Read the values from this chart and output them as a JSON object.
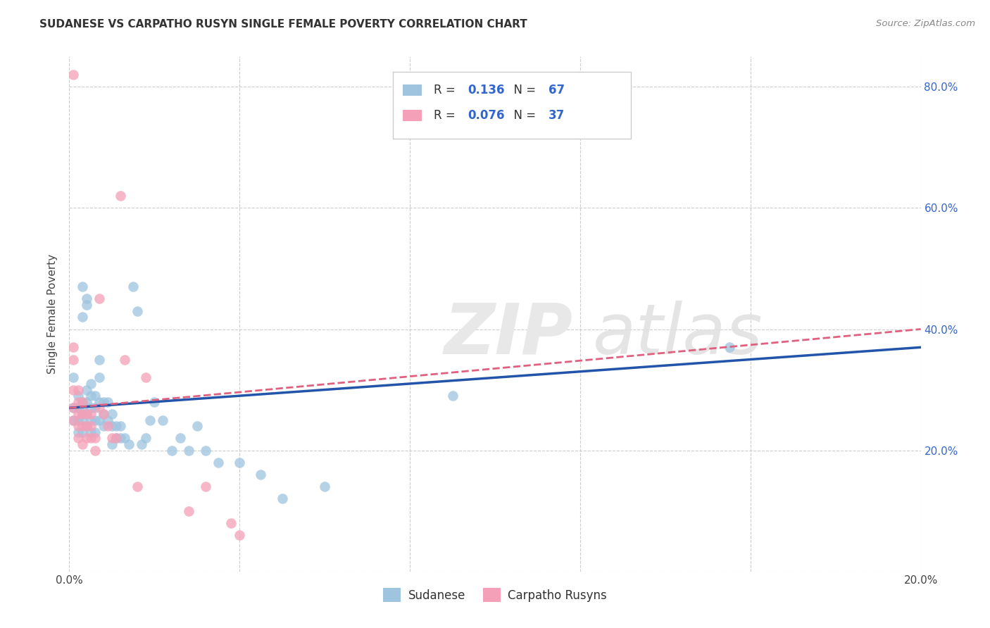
{
  "title": "SUDANESE VS CARPATHO RUSYN SINGLE FEMALE POVERTY CORRELATION CHART",
  "source": "Source: ZipAtlas.com",
  "ylabel": "Single Female Poverty",
  "xlim": [
    0.0,
    0.2
  ],
  "ylim": [
    0.0,
    0.85
  ],
  "xtick_vals": [
    0.0,
    0.04,
    0.08,
    0.12,
    0.16,
    0.2
  ],
  "ytick_vals": [
    0.0,
    0.2,
    0.4,
    0.6,
    0.8
  ],
  "sudanese_color": "#9ec4e0",
  "carpatho_color": "#f4a0b8",
  "sudanese_R": 0.136,
  "sudanese_N": 67,
  "carpatho_R": 0.076,
  "carpatho_N": 37,
  "sudanese_line_color": "#2255aa",
  "carpatho_line_color": "#e06080",
  "background_color": "#ffffff",
  "grid_color": "#cccccc",
  "legend_color": "#3366cc",
  "sudanese_x": [
    0.001,
    0.001,
    0.001,
    0.002,
    0.002,
    0.002,
    0.002,
    0.002,
    0.003,
    0.003,
    0.003,
    0.003,
    0.003,
    0.003,
    0.003,
    0.004,
    0.004,
    0.004,
    0.004,
    0.004,
    0.004,
    0.005,
    0.005,
    0.005,
    0.005,
    0.005,
    0.006,
    0.006,
    0.006,
    0.006,
    0.007,
    0.007,
    0.007,
    0.007,
    0.008,
    0.008,
    0.008,
    0.009,
    0.009,
    0.01,
    0.01,
    0.01,
    0.011,
    0.011,
    0.012,
    0.012,
    0.013,
    0.014,
    0.015,
    0.016,
    0.017,
    0.018,
    0.019,
    0.02,
    0.022,
    0.024,
    0.026,
    0.028,
    0.03,
    0.032,
    0.035,
    0.04,
    0.045,
    0.05,
    0.06,
    0.09,
    0.155
  ],
  "sudanese_y": [
    0.32,
    0.27,
    0.25,
    0.27,
    0.29,
    0.27,
    0.25,
    0.23,
    0.42,
    0.47,
    0.28,
    0.27,
    0.26,
    0.25,
    0.23,
    0.45,
    0.44,
    0.3,
    0.28,
    0.26,
    0.24,
    0.31,
    0.29,
    0.27,
    0.25,
    0.23,
    0.29,
    0.27,
    0.25,
    0.23,
    0.35,
    0.32,
    0.28,
    0.25,
    0.28,
    0.26,
    0.24,
    0.28,
    0.25,
    0.26,
    0.24,
    0.21,
    0.24,
    0.22,
    0.24,
    0.22,
    0.22,
    0.21,
    0.47,
    0.43,
    0.21,
    0.22,
    0.25,
    0.28,
    0.25,
    0.2,
    0.22,
    0.2,
    0.24,
    0.2,
    0.18,
    0.18,
    0.16,
    0.12,
    0.14,
    0.29,
    0.37
  ],
  "carpatho_x": [
    0.001,
    0.001,
    0.001,
    0.001,
    0.001,
    0.001,
    0.002,
    0.002,
    0.002,
    0.002,
    0.002,
    0.003,
    0.003,
    0.003,
    0.003,
    0.004,
    0.004,
    0.004,
    0.005,
    0.005,
    0.005,
    0.006,
    0.006,
    0.007,
    0.007,
    0.008,
    0.009,
    0.01,
    0.011,
    0.012,
    0.013,
    0.016,
    0.018,
    0.028,
    0.032,
    0.038,
    0.04
  ],
  "carpatho_y": [
    0.82,
    0.37,
    0.35,
    0.3,
    0.27,
    0.25,
    0.3,
    0.28,
    0.26,
    0.24,
    0.22,
    0.28,
    0.26,
    0.24,
    0.21,
    0.26,
    0.24,
    0.22,
    0.26,
    0.24,
    0.22,
    0.22,
    0.2,
    0.45,
    0.27,
    0.26,
    0.24,
    0.22,
    0.22,
    0.62,
    0.35,
    0.14,
    0.32,
    0.1,
    0.14,
    0.08,
    0.06
  ]
}
